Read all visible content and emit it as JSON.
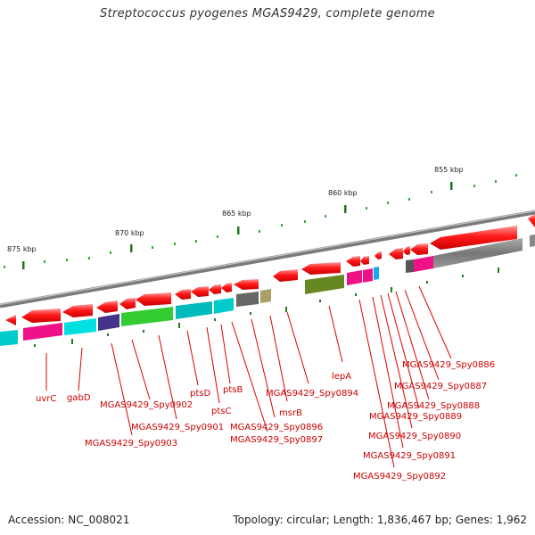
{
  "title": "Streptococcus pyogenes MGAS9429, complete genome",
  "footer": {
    "accession": "Accession: NC_008021",
    "summary": "Topology: circular; Length: 1,836,467 bp; Genes: 1,962"
  },
  "scale_labels": [
    "875 kbp",
    "870 kbp",
    "865 kbp",
    "860 kbp",
    "855 kbp"
  ],
  "gene_labels": [
    "uvrC",
    "gabD",
    "MGAS9429_Spy0903",
    "MGAS9429_Spy0902",
    "MGAS9429_Spy0901",
    "ptsD",
    "ptsC",
    "ptsB",
    "MGAS9429_Spy0897",
    "MGAS9429_Spy0896",
    "msrB",
    "MGAS9429_Spy0894",
    "lepA",
    "MGAS9429_Spy0892",
    "MGAS9429_Spy0891",
    "MGAS9429_Spy0890",
    "MGAS9429_Spy0889",
    "MGAS9429_Spy0888",
    "MGAS9429_Spy0887",
    "MGAS9429_Spy0886"
  ],
  "colors": {
    "backbone": "#8a8a8a",
    "gene_arrow": "#ee0000",
    "label": "#cc0000",
    "tick_major": "#227722",
    "tick_minor": "#33aa33"
  }
}
